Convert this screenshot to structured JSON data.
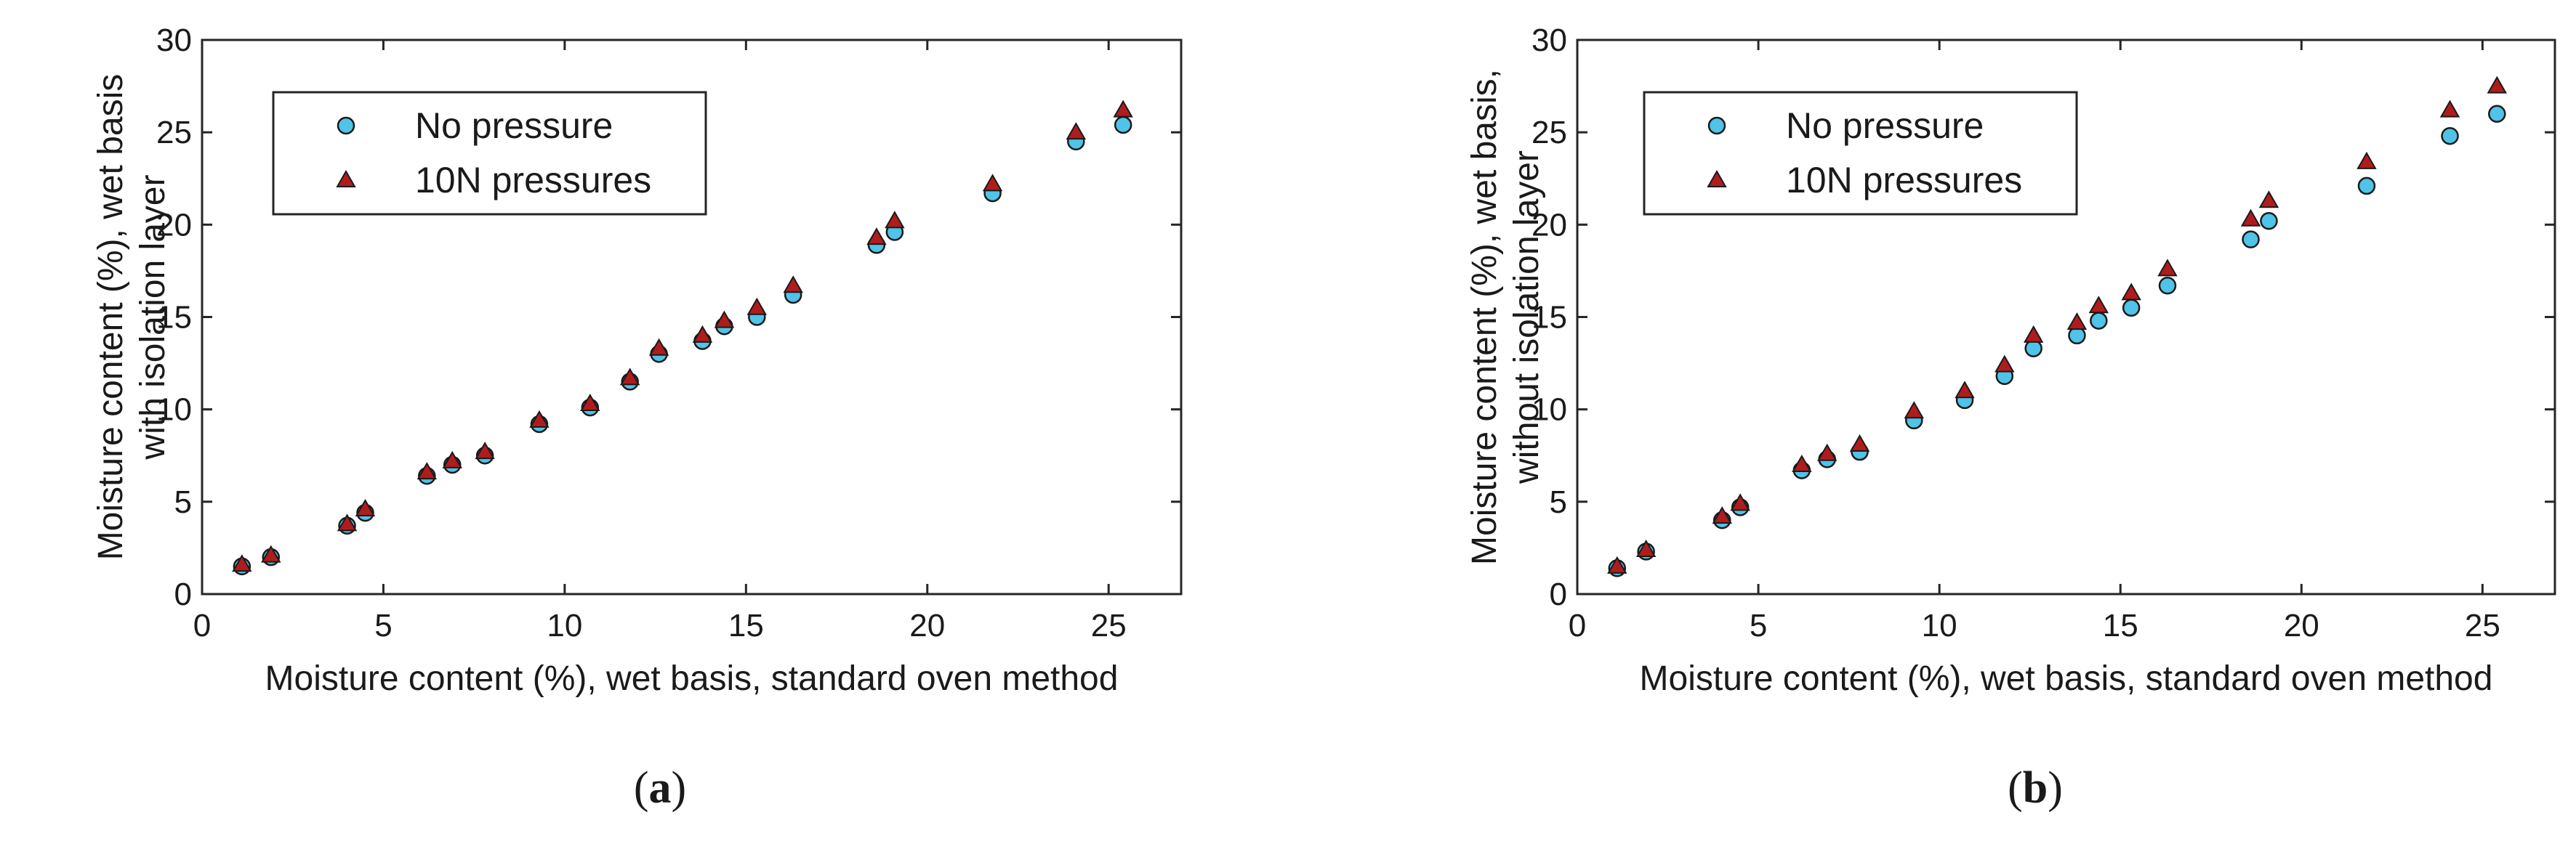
{
  "chart_data": [
    {
      "type": "scatter",
      "panel_label": "a",
      "xlabel": "Moisture content (%), wet basis, standard oven method",
      "ylabel": [
        "Moisture content (%), wet basis",
        "with isolation layer"
      ],
      "xlim": [
        0,
        27
      ],
      "ylim": [
        0,
        30
      ],
      "xticks": [
        0,
        5,
        10,
        15,
        20,
        25
      ],
      "yticks": [
        0,
        5,
        10,
        15,
        20,
        25,
        30
      ],
      "grid": false,
      "legend_position": "top-left",
      "series": [
        {
          "name": "No pressure",
          "marker": "circle",
          "color": "#4fc3e8",
          "x": [
            1.1,
            1.9,
            4.0,
            4.5,
            6.2,
            6.9,
            7.8,
            9.3,
            10.7,
            11.8,
            12.6,
            13.8,
            14.4,
            15.3,
            16.3,
            18.6,
            19.1,
            21.8,
            24.1,
            25.4
          ],
          "y": [
            1.5,
            2.0,
            3.7,
            4.4,
            6.4,
            7.0,
            7.5,
            9.2,
            10.1,
            11.5,
            13.0,
            13.7,
            14.5,
            15.0,
            16.2,
            18.9,
            19.6,
            21.7,
            24.5,
            25.4
          ]
        },
        {
          "name": "10N pressures",
          "marker": "triangle",
          "color": "#b01c1c",
          "x": [
            1.1,
            1.9,
            4.0,
            4.5,
            6.2,
            6.9,
            7.8,
            9.3,
            10.7,
            11.8,
            12.6,
            13.8,
            14.4,
            15.3,
            16.3,
            18.6,
            19.1,
            21.8,
            24.1,
            25.4
          ],
          "y": [
            1.6,
            2.1,
            3.8,
            4.6,
            6.6,
            7.2,
            7.7,
            9.4,
            10.3,
            11.7,
            13.3,
            14.0,
            14.8,
            15.5,
            16.7,
            19.3,
            20.2,
            22.2,
            25.0,
            26.2
          ]
        }
      ]
    },
    {
      "type": "scatter",
      "panel_label": "b",
      "xlabel": "Moisture content (%), wet basis, standard oven method",
      "ylabel": [
        "Moisture content (%), wet basis,",
        "without isolation layer"
      ],
      "xlim": [
        0,
        27
      ],
      "ylim": [
        0,
        30
      ],
      "xticks": [
        0,
        5,
        10,
        15,
        20,
        25
      ],
      "yticks": [
        0,
        5,
        10,
        15,
        20,
        25,
        30
      ],
      "grid": false,
      "legend_position": "top-left",
      "series": [
        {
          "name": "No pressure",
          "marker": "circle",
          "color": "#4fc3e8",
          "x": [
            1.1,
            1.9,
            4.0,
            4.5,
            6.2,
            6.9,
            7.8,
            9.3,
            10.7,
            11.8,
            12.6,
            13.8,
            14.4,
            15.3,
            16.3,
            18.6,
            19.1,
            21.8,
            24.1,
            25.4
          ],
          "y": [
            1.4,
            2.3,
            4.0,
            4.7,
            6.7,
            7.3,
            7.7,
            9.4,
            10.5,
            11.8,
            13.3,
            14.0,
            14.8,
            15.5,
            16.7,
            19.2,
            20.2,
            22.1,
            24.8,
            26.0
          ]
        },
        {
          "name": "10N pressures",
          "marker": "triangle",
          "color": "#b01c1c",
          "x": [
            1.1,
            1.9,
            4.0,
            4.5,
            6.2,
            6.9,
            7.8,
            9.3,
            10.7,
            11.8,
            12.6,
            13.8,
            14.4,
            15.3,
            16.3,
            18.6,
            19.1,
            21.8,
            24.1,
            25.4
          ],
          "y": [
            1.5,
            2.4,
            4.2,
            4.9,
            7.0,
            7.6,
            8.1,
            9.9,
            11.0,
            12.4,
            14.0,
            14.7,
            15.6,
            16.3,
            17.6,
            20.3,
            21.3,
            23.4,
            26.2,
            27.5
          ]
        }
      ]
    }
  ]
}
